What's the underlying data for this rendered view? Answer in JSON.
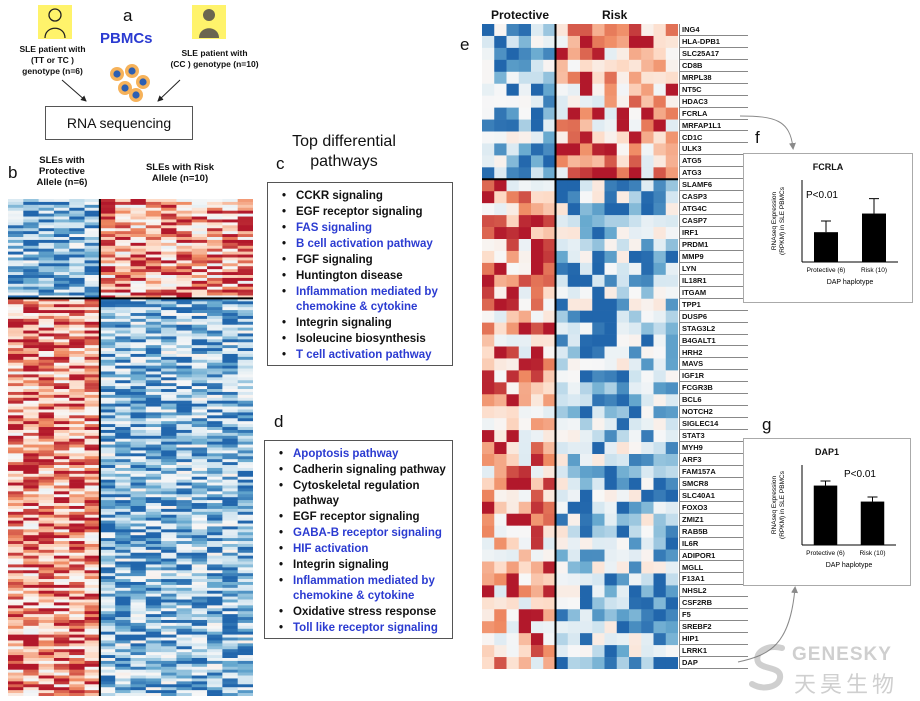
{
  "panel_a": {
    "letter": "a",
    "title": "PBMCs",
    "left_group": [
      "SLE patient with",
      "(TT or TC )",
      "genotype (n=6)"
    ],
    "right_group": [
      "SLE patient with",
      "(CC ) genotype (n=10)"
    ],
    "process": "RNA sequencing"
  },
  "panel_b": {
    "letter": "b",
    "col_left": [
      "SLEs with",
      "Protective",
      "Allele (n=6)"
    ],
    "col_right": [
      "SLEs with Risk",
      "Allele (n=10)"
    ]
  },
  "panel_c": {
    "header": [
      "Top differential",
      "pathways"
    ],
    "letter": "c",
    "items": [
      {
        "text": "CCKR signaling",
        "color": "black"
      },
      {
        "text": "EGF receptor signaling",
        "color": "black"
      },
      {
        "text": "FAS signaling",
        "color": "blue"
      },
      {
        "text": "B cell activation pathway",
        "color": "blue"
      },
      {
        "text": "FGF signaling",
        "color": "black"
      },
      {
        "text": "Huntington disease",
        "color": "black"
      },
      {
        "text": "Inflammation mediated by chemokine & cytokine",
        "color": "blue"
      },
      {
        "text": "Integrin signaling",
        "color": "black"
      },
      {
        "text": "Isoleucine biosynthesis",
        "color": "black"
      },
      {
        "text": "T cell activation pathway",
        "color": "blue"
      }
    ]
  },
  "panel_d": {
    "letter": "d",
    "items": [
      {
        "text": "Apoptosis pathway",
        "color": "blue"
      },
      {
        "text": "Cadherin signaling pathway",
        "color": "black"
      },
      {
        "text": "Cytoskeletal regulation pathway",
        "color": "black"
      },
      {
        "text": "EGF receptor signaling",
        "color": "black"
      },
      {
        "text": "GABA-B receptor signaling",
        "color": "blue"
      },
      {
        "text": "HIF activation",
        "color": "blue"
      },
      {
        "text": "Integrin signaling",
        "color": "black"
      },
      {
        "text": "Inflammation mediated by chemokine & cytokine",
        "color": "blue"
      },
      {
        "text": "Oxidative stress response",
        "color": "black"
      },
      {
        "text": "Toll like receptor signaling",
        "color": "blue"
      }
    ]
  },
  "panel_e": {
    "letter": "e",
    "col_left": "Protective",
    "col_right": "Risk",
    "genes": [
      "ING4",
      "HLA-DPB1",
      "SLC25A17",
      "CD8B",
      "MRPL38",
      "NT5C",
      "HDAC3",
      "FCRLA",
      "MRFAP1L1",
      "CD1C",
      "ULK3",
      "ATG5",
      "ATG3",
      "SLAMF6",
      "CASP3",
      "ATG4C",
      "CASP7",
      "IRF1",
      "PRDM1",
      "MMP9",
      "LYN",
      "IL18R1",
      "ITGAM",
      "TPP1",
      "DUSP6",
      "STAG3L2",
      "B4GALT1",
      "HRH2",
      "MAVS",
      "IGF1R",
      "FCGR3B",
      "BCL6",
      "NOTCH2",
      "SIGLEC14",
      "STAT3",
      "MYH9",
      "ARF3",
      "FAM157A",
      "SMCR8",
      "SLC40A1",
      "FOXO3",
      "ZMIZ1",
      "RAB5B",
      "IL6R",
      "ADIPOR1",
      "MGLL",
      "F13A1",
      "NHSL2",
      "CSF2RB",
      "F5",
      "SREBF2",
      "HIP1",
      "LRRK1",
      "DAP"
    ]
  },
  "panel_f": {
    "letter": "f",
    "chart_data": {
      "type": "bar",
      "title": "FCRLA",
      "categories": [
        "Protective (6)",
        "Risk (10)"
      ],
      "values": [
        8,
        13
      ],
      "errors": [
        3,
        4
      ],
      "ylabel": "RNAseq Expression (RPKM) in SLE PBMCs",
      "xlabel": "DAP haplotype",
      "annotation": "P<0.01",
      "ylim": [
        0,
        22
      ]
    }
  },
  "panel_g": {
    "letter": "g",
    "chart_data": {
      "type": "bar",
      "title": "DAP1",
      "categories": [
        "Protective (6)",
        "Risk (10)"
      ],
      "values": [
        26,
        19
      ],
      "errors": [
        2,
        2
      ],
      "ylabel": "RNAseq Expression (RPKM) in SLE PBMCs",
      "xlabel": "DAP haplotype",
      "annotation": "P<0.01",
      "ylim": [
        0,
        35
      ]
    }
  },
  "watermark": {
    "en": "GENESKY",
    "zh": "天昊生物"
  },
  "colors": {
    "red": "#b2182b",
    "blue": "#2166ac",
    "accent_blue": "#2b3bd1",
    "yellow": "#fff36b"
  }
}
